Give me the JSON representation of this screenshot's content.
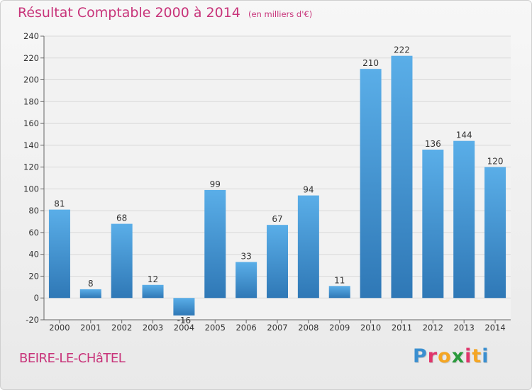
{
  "title": "Résultat Comptable 2000 à 2014",
  "unit": "(en milliers d'€)",
  "commune": "BEIRE-LE-CHâTEL",
  "logo": {
    "text": "Proxiti",
    "colors": [
      "#3a8fd0",
      "#e0356b",
      "#f5a623",
      "#2a9a3c",
      "#e0356b",
      "#f5a623",
      "#3a8fd0"
    ]
  },
  "chart_data": {
    "type": "bar",
    "categories": [
      "2000",
      "2001",
      "2002",
      "2003",
      "2004",
      "2005",
      "2006",
      "2007",
      "2008",
      "2009",
      "2010",
      "2011",
      "2012",
      "2013",
      "2014"
    ],
    "values": [
      81,
      8,
      68,
      12,
      -16,
      99,
      33,
      67,
      94,
      11,
      210,
      222,
      136,
      144,
      120
    ],
    "labels": [
      "81",
      "8",
      "68",
      "12",
      "-16",
      "99",
      "33",
      "67",
      "94",
      "11",
      "210",
      "222",
      "136",
      "144",
      "120"
    ],
    "ylim": [
      -20,
      240
    ],
    "yticks": [
      -20,
      0,
      20,
      40,
      60,
      80,
      100,
      120,
      140,
      160,
      180,
      200,
      220,
      240
    ],
    "grid": true,
    "colors": {
      "bar_top": "#5aaee8",
      "bar_bottom": "#2f78b6",
      "grid": "#d9d9d9",
      "axis": "#666666",
      "text": "#333333"
    }
  }
}
